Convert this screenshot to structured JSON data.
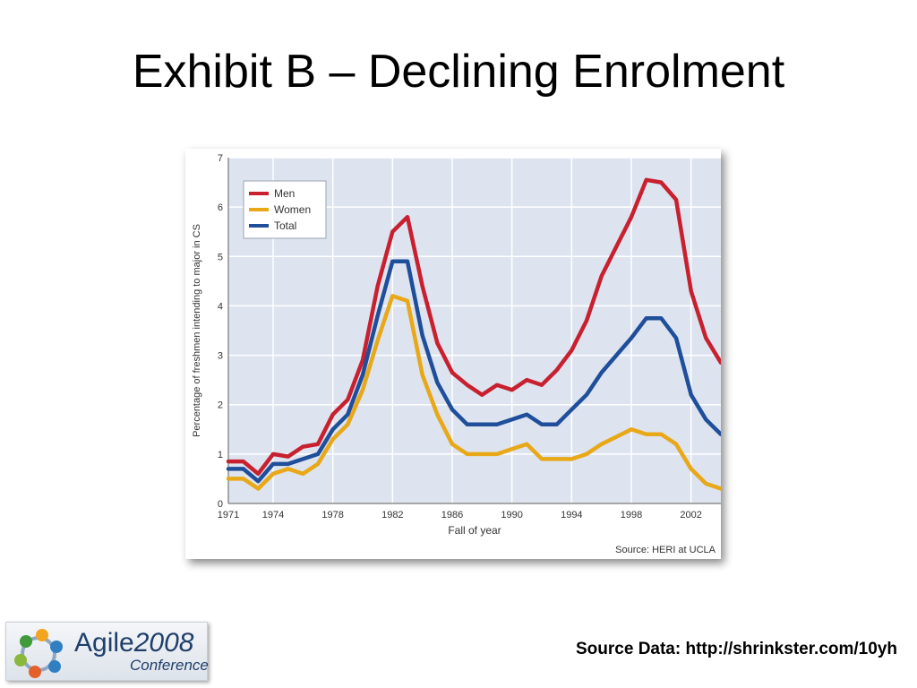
{
  "slide": {
    "title": "Exhibit B – Declining Enrolment",
    "footer": "Source Data: http://shrinkster.com/10yh"
  },
  "logo": {
    "name": "Agile",
    "year": "2008",
    "subtitle": "Conference"
  },
  "chart_data": {
    "type": "line",
    "title": "",
    "xlabel": "Fall of year",
    "ylabel": "Percentage of freshmen intending to major in CS",
    "source": "Source: HERI at UCLA",
    "xlim": [
      1971,
      2004
    ],
    "ylim": [
      0,
      7
    ],
    "x_ticks": [
      1971,
      1974,
      1978,
      1982,
      1986,
      1990,
      1994,
      1998,
      2002
    ],
    "y_ticks": [
      0,
      1,
      2,
      3,
      4,
      5,
      6,
      7
    ],
    "grid": true,
    "legend_position": "top-left",
    "colors": {
      "Men": "#c8202f",
      "Women": "#e8a817",
      "Total": "#1f4e9a",
      "plot_background": "#dde4f0",
      "grid": "#ffffff"
    },
    "x": [
      1971,
      1972,
      1973,
      1974,
      1975,
      1976,
      1977,
      1978,
      1979,
      1980,
      1981,
      1982,
      1983,
      1984,
      1985,
      1986,
      1987,
      1988,
      1989,
      1990,
      1991,
      1992,
      1993,
      1994,
      1995,
      1996,
      1997,
      1998,
      1999,
      2000,
      2001,
      2002,
      2003,
      2004
    ],
    "series": [
      {
        "name": "Men",
        "values": [
          0.85,
          0.85,
          0.6,
          1.0,
          0.95,
          1.15,
          1.2,
          1.8,
          2.1,
          2.9,
          4.4,
          5.5,
          5.8,
          4.4,
          3.25,
          2.65,
          2.4,
          2.2,
          2.4,
          2.3,
          2.5,
          2.4,
          2.7,
          3.1,
          3.7,
          4.6,
          5.2,
          5.8,
          6.55,
          6.5,
          6.15,
          4.3,
          3.35,
          2.85
        ]
      },
      {
        "name": "Women",
        "values": [
          0.5,
          0.5,
          0.3,
          0.6,
          0.7,
          0.6,
          0.8,
          1.3,
          1.6,
          2.3,
          3.3,
          4.2,
          4.1,
          2.6,
          1.8,
          1.2,
          1.0,
          1.0,
          1.0,
          1.1,
          1.2,
          0.9,
          0.9,
          0.9,
          1.0,
          1.2,
          1.35,
          1.5,
          1.4,
          1.4,
          1.2,
          0.7,
          0.4,
          0.3
        ]
      },
      {
        "name": "Total",
        "values": [
          0.7,
          0.7,
          0.45,
          0.8,
          0.8,
          0.9,
          1.0,
          1.5,
          1.8,
          2.6,
          3.8,
          4.9,
          4.9,
          3.4,
          2.45,
          1.9,
          1.6,
          1.6,
          1.6,
          1.7,
          1.8,
          1.6,
          1.6,
          1.9,
          2.2,
          2.65,
          3.0,
          3.35,
          3.75,
          3.75,
          3.35,
          2.2,
          1.7,
          1.4
        ]
      }
    ]
  }
}
